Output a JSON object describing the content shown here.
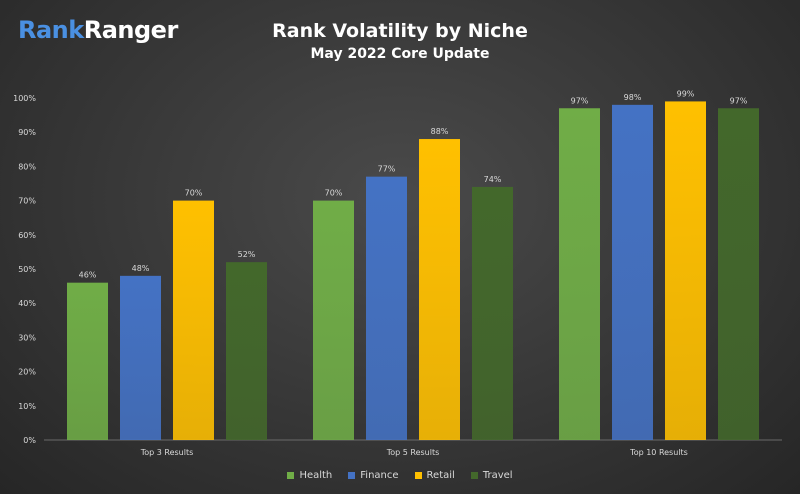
{
  "logo": {
    "part1": "Rank",
    "part2": "Ranger"
  },
  "chart_data": {
    "type": "bar",
    "title": "Rank Volatility by Niche",
    "subtitle": "May 2022 Core Update",
    "categories": [
      "Top 3 Results",
      "Top 5 Results",
      "Top 10 Results"
    ],
    "series": [
      {
        "name": "Health",
        "values": [
          46,
          70,
          97
        ],
        "color": "#70ad47"
      },
      {
        "name": "Finance",
        "values": [
          48,
          77,
          98
        ],
        "color": "#4472c4"
      },
      {
        "name": "Retail",
        "values": [
          70,
          88,
          99
        ],
        "color": "#ffc000"
      },
      {
        "name": "Travel",
        "values": [
          52,
          74,
          97
        ],
        "color": "#43682b"
      }
    ],
    "value_labels": [
      [
        "46%",
        "70%",
        "97%"
      ],
      [
        "48%",
        "77%",
        "98%"
      ],
      [
        "70%",
        "88%",
        "99%"
      ],
      [
        "52%",
        "74%",
        "97%"
      ]
    ],
    "ylim": [
      0,
      100
    ],
    "yticks": [
      "0%",
      "10%",
      "20%",
      "30%",
      "40%",
      "50%",
      "60%",
      "70%",
      "80%",
      "90%",
      "100%"
    ],
    "grid": false,
    "legend": "bottom-center"
  }
}
